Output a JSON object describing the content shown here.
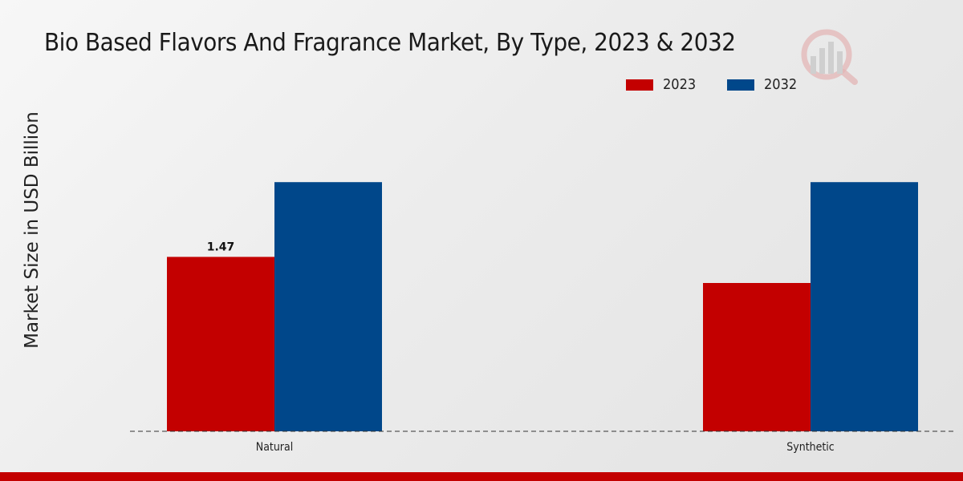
{
  "chart_data": {
    "type": "bar",
    "title": "Bio Based Flavors And Fragrance Market, By Type, 2023 & 2032",
    "ylabel": "Market Size in USD Billion",
    "xlabel": "",
    "categories": [
      "Natural",
      "Synthetic"
    ],
    "series": [
      {
        "name": "2023",
        "color": "#c30000",
        "values": [
          1.47,
          1.25
        ]
      },
      {
        "name": "2032",
        "color": "#00478a",
        "values": [
          2.1,
          2.1
        ]
      }
    ],
    "data_labels": [
      {
        "series": "2023",
        "category": "Natural",
        "text": "1.47"
      }
    ],
    "ylim": [
      0,
      3.5
    ],
    "grid": false,
    "legend_position": "top-right"
  },
  "logo_icon": "market-research-logo-icon"
}
